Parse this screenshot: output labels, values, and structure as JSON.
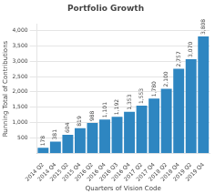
{
  "chart_data": {
    "type": "bar",
    "title": "Portfolio Growth",
    "x_label": "Quarters of Vision Code",
    "y_label": "Running Total of Contributions",
    "categories": [
      "2014 Q2",
      "2014 Q4",
      "2015 Q2",
      "2015 Q4",
      "2016 Q2",
      "2016 Q4",
      "2016 Q3",
      "2016 Q4",
      "2017 Q2",
      "2017 Q4",
      "2018 Q2",
      "2018 Q4",
      "2019 Q2",
      "2019 Q4"
    ],
    "values": [
      178,
      381,
      604,
      819,
      988,
      1101,
      1192,
      1353,
      1553,
      1780,
      2100,
      2757,
      3070,
      3808
    ],
    "value_labels": [
      "178",
      "381",
      "604",
      "819",
      "988",
      "1,101",
      "1,192",
      "1,353",
      "1,553",
      "1,780",
      "2,100",
      "2,757",
      "3,070",
      "3,808"
    ],
    "data_labels": true,
    "color": "#2e86c1",
    "ylim": [
      0,
      4200
    ],
    "yticks": [
      500,
      {
        "value": 1000,
        "label": "1,000"
      },
      {
        "value": 1500,
        "label": "1,500"
      },
      {
        "value": 2000,
        "label": "2,000"
      },
      {
        "value": 2500,
        "label": "2,500"
      },
      {
        "value": 3000,
        "label": "3,000"
      },
      {
        "value": 3500,
        "label": "3,500"
      },
      {
        "value": 4000,
        "label": "4,000"
      }
    ],
    "grid": true
  }
}
